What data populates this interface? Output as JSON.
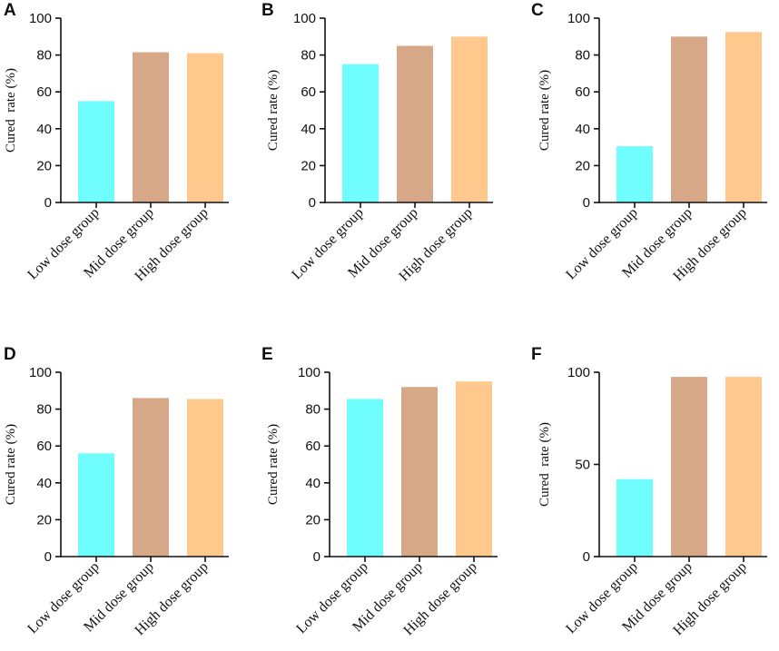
{
  "chart_data": [
    {
      "panel": "A",
      "type": "bar",
      "categories": [
        "Low dose group",
        "Mid dose group",
        "High dose group"
      ],
      "values": [
        55,
        81.5,
        81
      ],
      "colors": [
        "#6ffdfd",
        "#d6a888",
        "#ffc98d"
      ],
      "ylabel": "Cured  rate (%)",
      "ylim": [
        0,
        100
      ],
      "yticks": [
        0,
        20,
        40,
        60,
        80,
        100
      ]
    },
    {
      "panel": "B",
      "type": "bar",
      "categories": [
        "Low dose group",
        "Mid dose group",
        "High dose group"
      ],
      "values": [
        75,
        85,
        90
      ],
      "colors": [
        "#6ffdfd",
        "#d6a888",
        "#ffc98d"
      ],
      "ylabel": "Cured rate (%)",
      "ylim": [
        0,
        100
      ],
      "yticks": [
        0,
        20,
        40,
        60,
        80,
        100
      ]
    },
    {
      "panel": "C",
      "type": "bar",
      "categories": [
        "Low dose group",
        "Mid dose group",
        "High dose group"
      ],
      "values": [
        30.5,
        90,
        92.5
      ],
      "colors": [
        "#6ffdfd",
        "#d6a888",
        "#ffc98d"
      ],
      "ylabel": "Cured rate (%)",
      "ylim": [
        0,
        100
      ],
      "yticks": [
        0,
        20,
        40,
        60,
        80,
        100
      ]
    },
    {
      "panel": "D",
      "type": "bar",
      "categories": [
        "Low dose group",
        "Mid dose group",
        "High dose group"
      ],
      "values": [
        56,
        86,
        85.5
      ],
      "colors": [
        "#6ffdfd",
        "#d6a888",
        "#ffc98d"
      ],
      "ylabel": "Cured rate (%)",
      "ylim": [
        0,
        100
      ],
      "yticks": [
        0,
        20,
        40,
        60,
        80,
        100
      ]
    },
    {
      "panel": "E",
      "type": "bar",
      "categories": [
        "Low dose group",
        "Mid dose group",
        "High dose group"
      ],
      "values": [
        85.5,
        92,
        95
      ],
      "colors": [
        "#6ffdfd",
        "#d6a888",
        "#ffc98d"
      ],
      "ylabel": "Cured rate (%)",
      "ylim": [
        0,
        100
      ],
      "yticks": [
        0,
        20,
        40,
        60,
        80,
        100
      ]
    },
    {
      "panel": "F",
      "type": "bar",
      "categories": [
        "Low dose group",
        "Mid dose group",
        "High dose group"
      ],
      "values": [
        42,
        97.5,
        97.5
      ],
      "colors": [
        "#6ffdfd",
        "#d6a888",
        "#ffc98d"
      ],
      "ylabel": "Cured  rate (%)",
      "ylim": [
        0,
        100
      ],
      "yticks": [
        0,
        50,
        100
      ]
    }
  ]
}
